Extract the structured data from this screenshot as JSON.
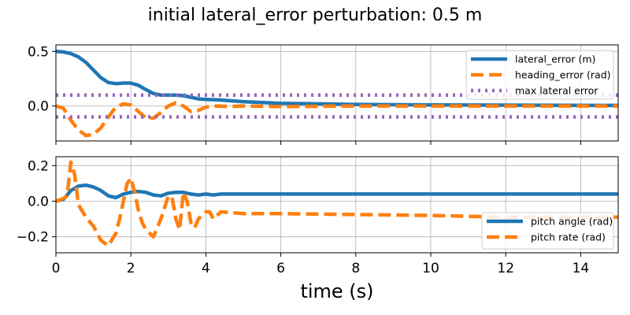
{
  "title": "initial lateral_error perturbation: 0.5 m",
  "chart_data": [
    {
      "type": "line",
      "xlim": [
        0,
        15
      ],
      "ylim": [
        -0.32,
        0.56
      ],
      "yticks": [
        -0.5,
        0.0,
        0.5
      ],
      "ytick_labels": [
        "",
        "0.0",
        "0.5"
      ],
      "xticks": [
        0,
        2,
        4,
        6,
        8,
        10,
        12,
        14
      ],
      "grid": true,
      "legend_position": "right",
      "series": [
        {
          "name": "lateral_error (m)",
          "color": "#1f77b4",
          "style": "solid",
          "x": [
            0,
            0.2,
            0.4,
            0.6,
            0.8,
            1.0,
            1.2,
            1.4,
            1.6,
            1.8,
            2.0,
            2.2,
            2.4,
            2.6,
            2.8,
            3.0,
            3.2,
            3.4,
            3.6,
            3.8,
            4.0,
            4.4,
            5.0,
            6.0,
            8.0,
            10.0,
            15.0
          ],
          "y": [
            0.5,
            0.495,
            0.48,
            0.45,
            0.4,
            0.33,
            0.26,
            0.215,
            0.205,
            0.21,
            0.21,
            0.19,
            0.15,
            0.115,
            0.1,
            0.1,
            0.1,
            0.095,
            0.08,
            0.065,
            0.06,
            0.055,
            0.04,
            0.025,
            0.015,
            0.01,
            0.005
          ]
        },
        {
          "name": "heading_error (rad)",
          "color": "#ff7f0e",
          "style": "dashed",
          "x": [
            0,
            0.2,
            0.4,
            0.6,
            0.8,
            1.0,
            1.2,
            1.4,
            1.6,
            1.8,
            2.0,
            2.2,
            2.4,
            2.6,
            2.8,
            3.0,
            3.2,
            3.4,
            3.6,
            3.8,
            4.0,
            4.3,
            4.6,
            5.0,
            6.0,
            8.0,
            10.0,
            15.0
          ],
          "y": [
            0,
            -0.02,
            -0.13,
            -0.22,
            -0.27,
            -0.26,
            -0.2,
            -0.1,
            -0.01,
            0.02,
            0.01,
            -0.05,
            -0.11,
            -0.11,
            -0.06,
            0.0,
            0.03,
            0.0,
            -0.05,
            -0.04,
            -0.01,
            0.0,
            -0.005,
            0.0,
            -0.005,
            0.0,
            0.0,
            0.0
          ]
        },
        {
          "name": "max lateral error",
          "color": "#9467bd",
          "style": "dotted",
          "x": [
            0,
            15
          ],
          "y": [
            0.1,
            0.1
          ]
        },
        {
          "name": "",
          "color": "#9467bd",
          "style": "dotted",
          "x": [
            0,
            15
          ],
          "y": [
            -0.1,
            -0.1
          ]
        }
      ]
    },
    {
      "type": "line",
      "xlim": [
        0,
        15
      ],
      "ylim": [
        -0.29,
        0.25
      ],
      "yticks": [
        -0.2,
        0.0,
        0.2
      ],
      "ytick_labels": [
        "−0.2",
        "0.0",
        "0.2"
      ],
      "xticks": [
        0,
        2,
        4,
        6,
        8,
        10,
        12,
        14
      ],
      "xtick_labels": [
        "0",
        "2",
        "4",
        "6",
        "8",
        "10",
        "12",
        "14"
      ],
      "xlabel": "time (s)",
      "grid": true,
      "legend_position": "bottom-right",
      "series": [
        {
          "name": "pitch angle (rad)",
          "color": "#1f77b4",
          "style": "solid",
          "x": [
            0,
            0.2,
            0.4,
            0.6,
            0.8,
            1.0,
            1.2,
            1.4,
            1.6,
            1.8,
            2.0,
            2.2,
            2.4,
            2.6,
            2.8,
            3.0,
            3.2,
            3.4,
            3.6,
            3.8,
            4.0,
            4.2,
            4.4,
            5.0,
            8.0,
            15.0
          ],
          "y": [
            0.0,
            0.01,
            0.06,
            0.085,
            0.09,
            0.08,
            0.06,
            0.03,
            0.02,
            0.04,
            0.05,
            0.055,
            0.05,
            0.035,
            0.03,
            0.045,
            0.05,
            0.05,
            0.04,
            0.035,
            0.04,
            0.035,
            0.04,
            0.04,
            0.04,
            0.04
          ]
        },
        {
          "name": "pitch rate (rad)",
          "color": "#ff7f0e",
          "style": "dashed",
          "x": [
            0,
            0.15,
            0.3,
            0.4,
            0.5,
            0.6,
            0.8,
            1.0,
            1.2,
            1.4,
            1.6,
            1.7,
            1.8,
            1.9,
            2.0,
            2.1,
            2.2,
            2.3,
            2.4,
            2.5,
            2.6,
            2.8,
            3.0,
            3.1,
            3.2,
            3.3,
            3.4,
            3.5,
            3.6,
            3.7,
            3.8,
            4.0,
            4.1,
            4.2,
            4.4,
            5.0,
            6.0,
            8.0,
            10.0,
            12.0,
            15.0
          ],
          "y": [
            0.0,
            0.01,
            0.03,
            0.22,
            0.15,
            -0.02,
            -0.09,
            -0.14,
            -0.22,
            -0.25,
            -0.18,
            -0.1,
            0.0,
            0.1,
            0.13,
            0.05,
            -0.05,
            -0.12,
            -0.16,
            -0.18,
            -0.2,
            -0.1,
            0.03,
            0.02,
            -0.1,
            -0.16,
            0.05,
            0.0,
            -0.12,
            -0.15,
            -0.1,
            -0.06,
            -0.06,
            -0.1,
            -0.06,
            -0.07,
            -0.07,
            -0.075,
            -0.08,
            -0.09,
            -0.09
          ]
        }
      ]
    }
  ]
}
